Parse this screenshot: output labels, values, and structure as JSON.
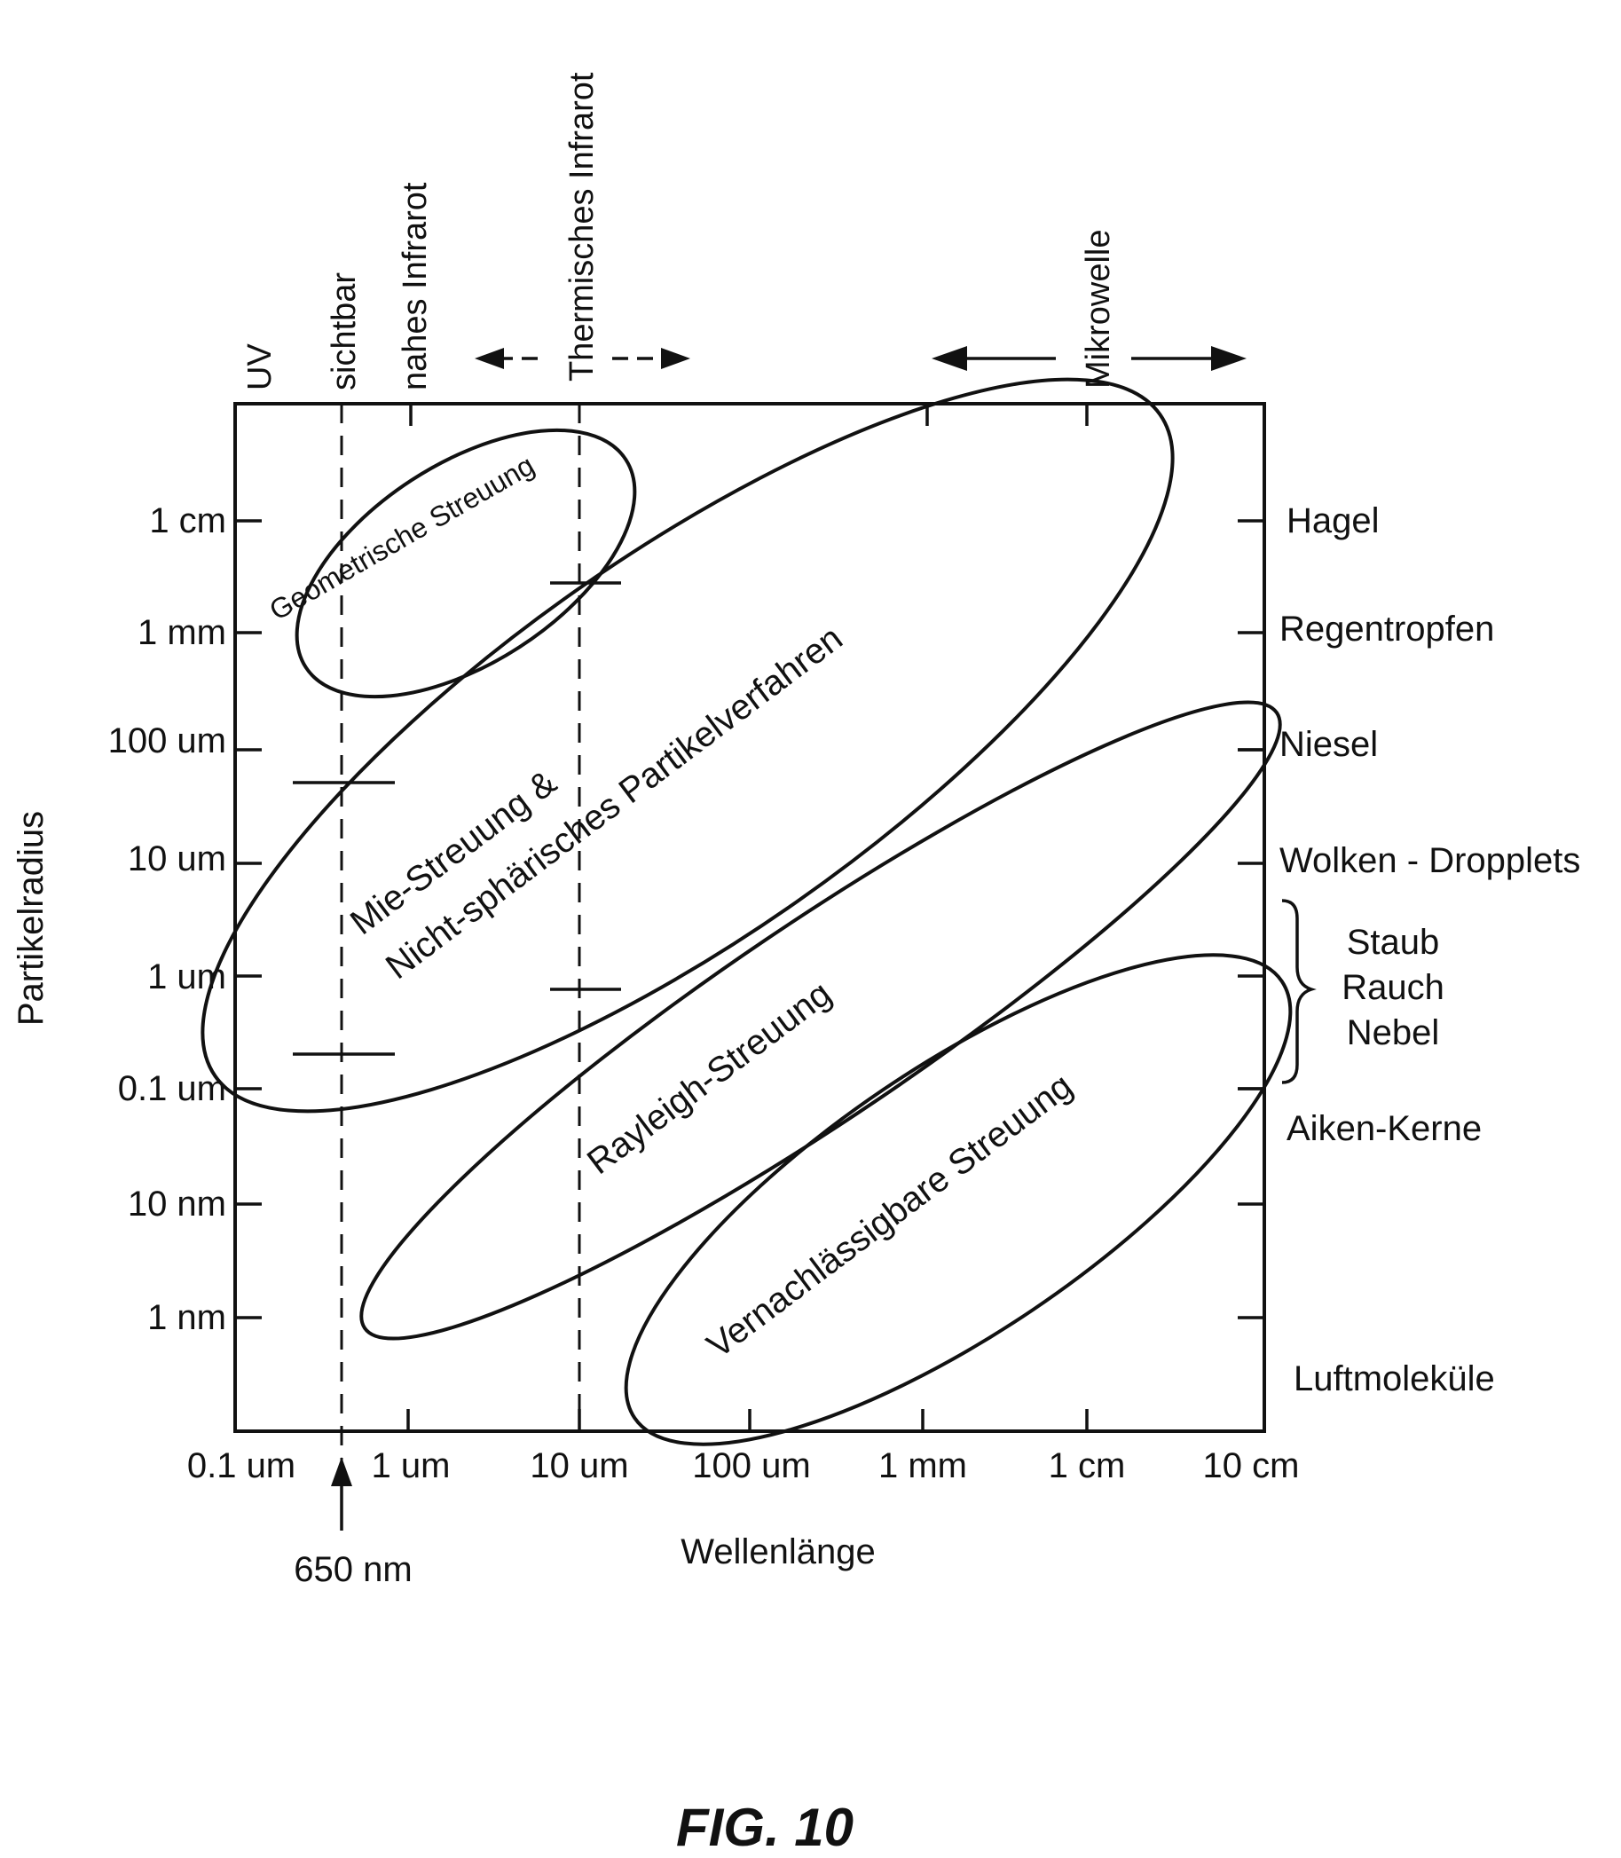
{
  "axes": {
    "x_title": "Wellenlänge",
    "y_title": "Partikelradius",
    "x_ticks": [
      "0.1 um",
      "1 um",
      "10 um",
      "100 um",
      "1 mm",
      "1 cm",
      "10 cm"
    ],
    "y_ticks": [
      "1 cm",
      "1 mm",
      "100 um",
      "10 um",
      "1 um",
      "0.1 um",
      "10 nm",
      "1 nm"
    ]
  },
  "bands": {
    "uv": "UV",
    "visible": "sichtbar",
    "near_ir": "nahes Infrarot",
    "thermal_ir": "Thermisches Infrarot",
    "microwave": "Mikrowelle"
  },
  "marker": {
    "label": "650 nm"
  },
  "regions": {
    "geometric": "Geometrische Streuung",
    "mie_line1": "Mie-Streuung &",
    "mie_line2": "Nicht-sphärisches Partikelverfahren",
    "rayleigh": "Rayleigh-Streuung",
    "negligible": "Vernachlässigbare Streuung"
  },
  "particles": {
    "hail": "Hagel",
    "raindrops": "Regentropfen",
    "drizzle": "Niesel",
    "cloud": "Wolken - Dropplets",
    "dust": "Staub",
    "smoke": "Rauch",
    "fog": "Nebel",
    "aitken": "Aiken-Kerne",
    "air": "Luftmoleküle"
  },
  "caption": "FIG. 10"
}
